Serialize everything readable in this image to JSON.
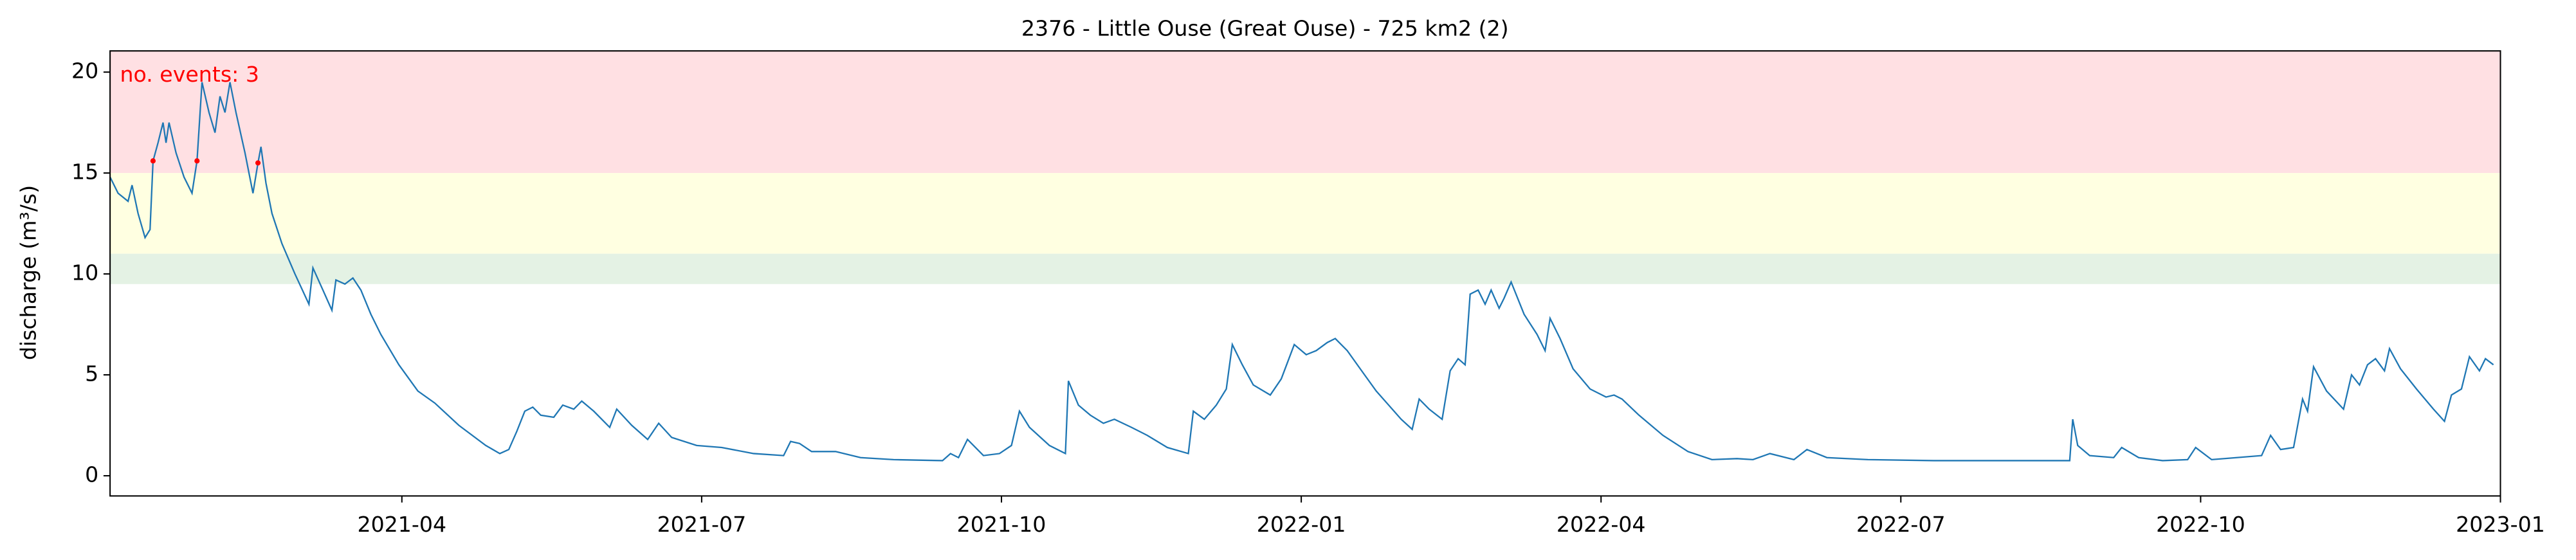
{
  "chart_data": {
    "type": "line",
    "title": "2376 - Little Ouse (Great Ouse) - 725 km2 (2)",
    "y_label": "discharge (m³/s)",
    "annotation": "no. events: 3",
    "annotation_color": "#ff0000",
    "xlim": [
      0.08,
      24
    ],
    "xticks": [
      {
        "value": 3,
        "label": "2021-04"
      },
      {
        "value": 6,
        "label": "2021-07"
      },
      {
        "value": 9,
        "label": "2021-10"
      },
      {
        "value": 12,
        "label": "2022-01"
      },
      {
        "value": 15,
        "label": "2022-04"
      },
      {
        "value": 18,
        "label": "2022-07"
      },
      {
        "value": 21,
        "label": "2022-10"
      },
      {
        "value": 24,
        "label": "2023-01"
      }
    ],
    "ylim": [
      -1,
      21.05
    ],
    "yticks": [
      0,
      5,
      10,
      15,
      20
    ],
    "bands": [
      {
        "from": 15,
        "to": 21.05,
        "color": "#ffe0e3"
      },
      {
        "from": 11,
        "to": 15,
        "color": "#ffffe1"
      },
      {
        "from": 9.5,
        "to": 11,
        "color": "#e4f2e4"
      }
    ],
    "line": {
      "color": "#1f77b4",
      "x": [
        0.08,
        0.16,
        0.26,
        0.3,
        0.36,
        0.43,
        0.48,
        0.51,
        0.56,
        0.61,
        0.64,
        0.67,
        0.74,
        0.82,
        0.9,
        0.95,
        1.0,
        1.07,
        1.13,
        1.18,
        1.23,
        1.28,
        1.34,
        1.43,
        1.51,
        1.56,
        1.59,
        1.64,
        1.7,
        1.8,
        1.93,
        2.07,
        2.11,
        2.21,
        2.3,
        2.34,
        2.43,
        2.51,
        2.59,
        2.69,
        2.79,
        2.97,
        3.16,
        3.33,
        3.57,
        3.84,
        3.98,
        4.07,
        4.15,
        4.23,
        4.31,
        4.39,
        4.52,
        4.61,
        4.72,
        4.8,
        4.92,
        5.08,
        5.15,
        5.3,
        5.46,
        5.57,
        5.7,
        5.95,
        6.2,
        6.52,
        6.82,
        6.89,
        6.98,
        7.1,
        7.34,
        7.59,
        7.92,
        8.41,
        8.49,
        8.57,
        8.66,
        8.82,
        8.98,
        9.1,
        9.18,
        9.28,
        9.48,
        9.64,
        9.67,
        9.77,
        9.89,
        10.02,
        10.13,
        10.3,
        10.46,
        10.66,
        10.87,
        10.92,
        11.03,
        11.15,
        11.25,
        11.31,
        11.41,
        11.52,
        11.69,
        11.8,
        11.93,
        12.05,
        12.15,
        12.26,
        12.34,
        12.46,
        12.59,
        12.75,
        13.0,
        13.11,
        13.18,
        13.28,
        13.41,
        13.49,
        13.57,
        13.64,
        13.69,
        13.77,
        13.84,
        13.9,
        13.98,
        14.03,
        14.1,
        14.23,
        14.36,
        14.44,
        14.49,
        14.59,
        14.72,
        14.89,
        15.05,
        15.13,
        15.21,
        15.38,
        15.62,
        15.87,
        16.11,
        16.36,
        16.52,
        16.69,
        16.93,
        17.06,
        17.26,
        17.67,
        18.33,
        18.98,
        19.69,
        19.72,
        19.77,
        19.89,
        20.13,
        20.21,
        20.38,
        20.62,
        20.87,
        20.95,
        21.11,
        21.36,
        21.61,
        21.7,
        21.8,
        21.93,
        22.02,
        22.07,
        22.13,
        22.26,
        22.43,
        22.51,
        22.59,
        22.67,
        22.75,
        22.84,
        22.89,
        23.0,
        23.16,
        23.33,
        23.44,
        23.51,
        23.61,
        23.69,
        23.79,
        23.85,
        23.93
      ],
      "values": [
        14.8,
        14.0,
        13.6,
        14.4,
        13.0,
        11.8,
        12.2,
        15.6,
        16.5,
        17.5,
        16.5,
        17.5,
        16.0,
        14.8,
        14.0,
        15.6,
        19.5,
        18.0,
        17.0,
        18.8,
        18.0,
        19.5,
        18.0,
        16.0,
        14.0,
        15.5,
        16.3,
        14.5,
        13.0,
        11.5,
        10.0,
        8.5,
        10.3,
        9.2,
        8.2,
        9.7,
        9.5,
        9.8,
        9.2,
        8.0,
        7.0,
        5.5,
        4.2,
        3.6,
        2.5,
        1.5,
        1.1,
        1.3,
        2.2,
        3.2,
        3.4,
        3.0,
        2.9,
        3.5,
        3.3,
        3.7,
        3.2,
        2.4,
        3.3,
        2.5,
        1.8,
        2.6,
        1.9,
        1.5,
        1.4,
        1.1,
        1.0,
        1.7,
        1.6,
        1.2,
        1.2,
        0.9,
        0.8,
        0.75,
        1.1,
        0.9,
        1.8,
        1.0,
        1.1,
        1.5,
        3.2,
        2.4,
        1.5,
        1.1,
        4.7,
        3.5,
        3.0,
        2.6,
        2.8,
        2.4,
        2.0,
        1.4,
        1.1,
        3.2,
        2.8,
        3.5,
        4.3,
        6.5,
        5.5,
        4.5,
        4.0,
        4.8,
        6.5,
        6.0,
        6.2,
        6.6,
        6.8,
        6.2,
        5.3,
        4.2,
        2.8,
        2.3,
        3.8,
        3.3,
        2.8,
        5.2,
        5.8,
        5.5,
        9.0,
        9.2,
        8.5,
        9.2,
        8.3,
        8.8,
        9.6,
        8.0,
        7.0,
        6.2,
        7.8,
        6.8,
        5.3,
        4.3,
        3.9,
        4.0,
        3.8,
        3.0,
        2.0,
        1.2,
        0.8,
        0.85,
        0.8,
        1.1,
        0.8,
        1.3,
        0.9,
        0.8,
        0.75,
        0.75,
        0.75,
        2.8,
        1.5,
        1.0,
        0.9,
        1.4,
        0.9,
        0.75,
        0.8,
        1.4,
        0.8,
        0.9,
        1.0,
        2.0,
        1.3,
        1.4,
        3.8,
        3.2,
        5.4,
        4.2,
        3.3,
        5.0,
        4.5,
        5.5,
        5.8,
        5.2,
        6.3,
        5.3,
        4.3,
        3.3,
        2.7,
        4.0,
        4.3,
        5.9,
        5.2,
        5.8,
        5.5
      ]
    },
    "events": {
      "color": "#ff0000",
      "x": [
        0.51,
        0.95,
        1.56
      ],
      "values": [
        15.6,
        15.6,
        15.5
      ]
    }
  }
}
